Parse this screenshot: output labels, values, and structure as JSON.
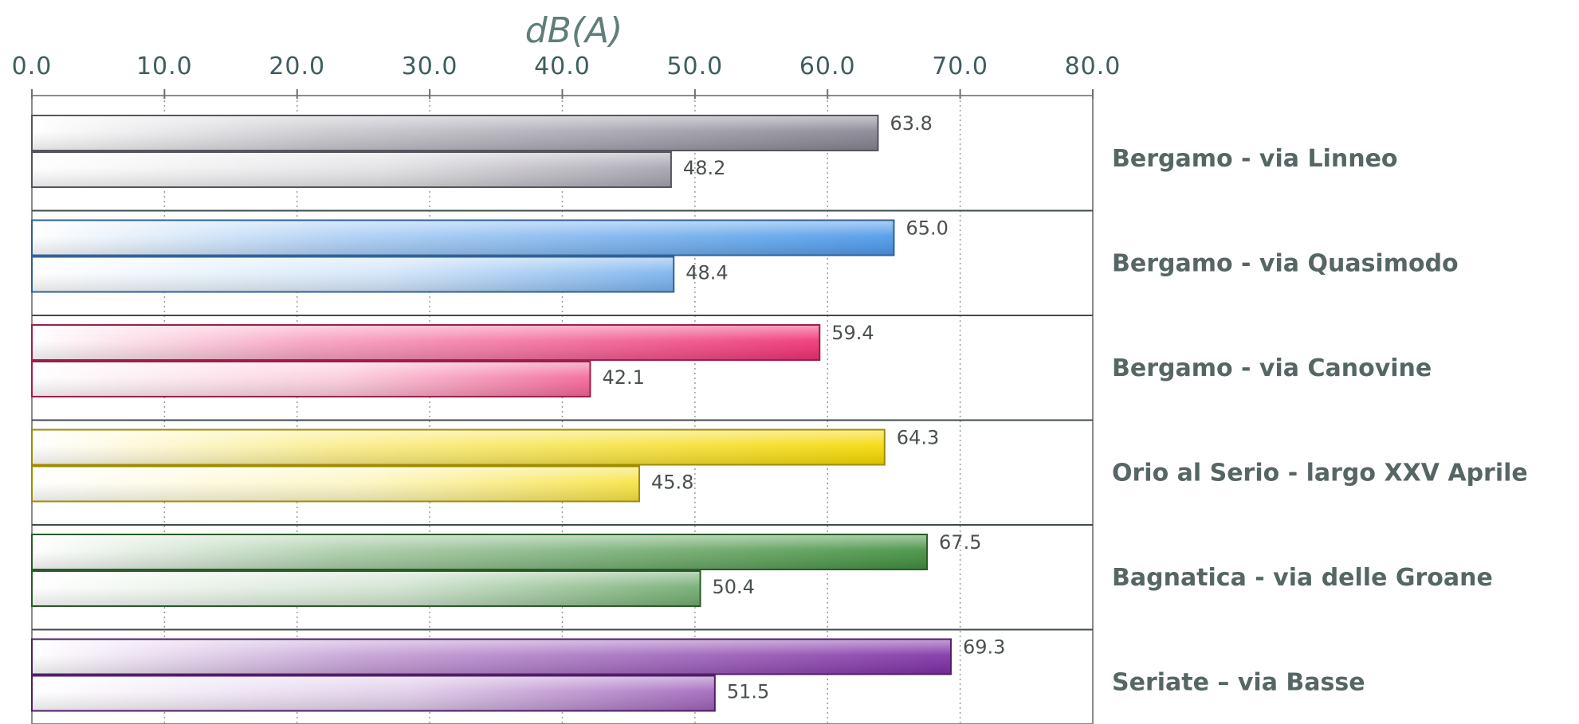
{
  "chart_data": {
    "type": "bar",
    "orientation": "horizontal",
    "unit_label": "dB(A)",
    "xlim": [
      0,
      80
    ],
    "x_ticks": [
      "0.0",
      "10.0",
      "20.0",
      "30.0",
      "40.0",
      "50.0",
      "60.0",
      "70.0",
      "80.0"
    ],
    "x_axis_position": "top",
    "grid": true,
    "categories": [
      "Bergamo - via Linneo",
      "Bergamo - via Quasimodo",
      "Bergamo - via Canovine",
      "Orio al Serio - largo XXV Aprile",
      "Bagnatica - via delle Groane",
      "Seriate – via Basse"
    ],
    "series": [
      {
        "values": [
          63.8,
          65.0,
          59.4,
          64.3,
          67.5,
          69.3
        ],
        "labels": [
          "63.8",
          "65.0",
          "59.4",
          "64.3",
          "67.5",
          "69.3"
        ]
      },
      {
        "values": [
          48.2,
          48.4,
          42.1,
          45.8,
          50.4,
          51.5
        ],
        "labels": [
          "48.2",
          "48.4",
          "42.1",
          "45.8",
          "50.4",
          "51.5"
        ]
      }
    ],
    "category_colors": [
      "#858290",
      "#4a97e8",
      "#ee2f72",
      "#f4d800",
      "#3f8e3c",
      "#7d2ea3"
    ]
  }
}
